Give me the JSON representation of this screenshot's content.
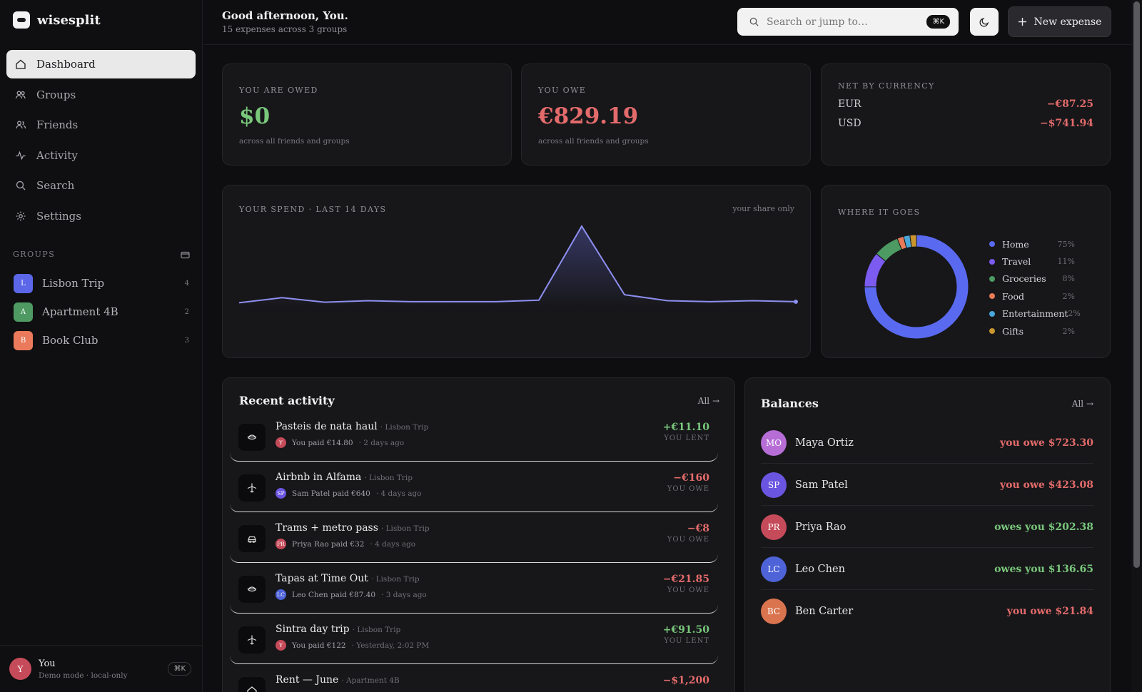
{
  "app": {
    "name": "wisesplit"
  },
  "sidebar": {
    "nav": [
      {
        "label": "Dashboard",
        "icon": "home-icon",
        "active": true
      },
      {
        "label": "Groups",
        "icon": "users-icon"
      },
      {
        "label": "Friends",
        "icon": "friends-icon"
      },
      {
        "label": "Activity",
        "icon": "activity-icon"
      },
      {
        "label": "Search",
        "icon": "search-icon"
      },
      {
        "label": "Settings",
        "icon": "gear-icon"
      }
    ],
    "groups_heading": "GROUPS",
    "groups": [
      {
        "initial": "L",
        "name": "Lisbon Trip",
        "count": "4",
        "color": "#5b67e8"
      },
      {
        "initial": "A",
        "name": "Apartment 4B",
        "count": "2",
        "color": "#4f9a63"
      },
      {
        "initial": "B",
        "name": "Book Club",
        "count": "3",
        "color": "#ea7a5b"
      }
    ],
    "user": {
      "initial": "Y",
      "name": "You",
      "sub": "Demo mode · local-only",
      "shortcut": "⌘K"
    }
  },
  "header": {
    "greeting": "Good afternoon, You.",
    "subtitle": "15 expenses across 3 groups",
    "search_placeholder": "Search or jump to…",
    "search_shortcut": "⌘K",
    "new_expense": "New expense"
  },
  "summary": {
    "owed": {
      "label": "YOU ARE OWED",
      "value": "$0",
      "sub": "across all friends and groups"
    },
    "owe": {
      "label": "YOU OWE",
      "value": "€829.19",
      "sub": "across all friends and groups"
    },
    "net": {
      "label": "NET BY CURRENCY",
      "rows": [
        {
          "currency": "EUR",
          "value": "−€87.25"
        },
        {
          "currency": "USD",
          "value": "−$741.94"
        }
      ]
    }
  },
  "spend": {
    "title": "YOUR SPEND · LAST 14 DAYS",
    "note": "your share only"
  },
  "chart_data": [
    {
      "type": "line",
      "title": "YOUR SPEND · LAST 14 DAYS",
      "x": [
        1,
        2,
        3,
        4,
        5,
        6,
        7,
        8,
        9,
        10,
        11,
        12,
        13,
        14
      ],
      "values": [
        8,
        18,
        9,
        12,
        10,
        10,
        10,
        13,
        160,
        24,
        12,
        10,
        12,
        10
      ],
      "ylim": [
        0,
        170
      ]
    },
    {
      "type": "pie",
      "title": "WHERE IT GOES",
      "categories": [
        "Home",
        "Travel",
        "Groceries",
        "Food",
        "Entertainment",
        "Gifts"
      ],
      "values": [
        75,
        11,
        8,
        2,
        2,
        2
      ],
      "colors": [
        "#5a6af0",
        "#7b5bf0",
        "#4d9a63",
        "#e87b59",
        "#4aa7d9",
        "#c9962f"
      ],
      "labels": [
        "75%",
        "11%",
        "8%",
        "2%",
        "2%",
        "2%"
      ]
    }
  ],
  "activity": {
    "title": "Recent activity",
    "all": "All",
    "items": [
      {
        "icon": "bowl-icon",
        "title": "Pasteis de nata haul",
        "group": "· Lisbon Trip",
        "avatar": "Y",
        "avatar_color": "#c64b5a",
        "paid": "You paid €14.80",
        "when": "· 2 days ago",
        "amount": "+€11.10",
        "kind": "YOU LENT",
        "positive": true
      },
      {
        "icon": "plane-icon",
        "title": "Airbnb in Alfama",
        "group": "· Lisbon Trip",
        "avatar": "SP",
        "avatar_color": "#6a55e0",
        "paid": "Sam Patel paid €640",
        "when": "· 4 days ago",
        "amount": "−€160",
        "kind": "YOU OWE",
        "positive": false
      },
      {
        "icon": "car-icon",
        "title": "Trams + metro pass",
        "group": "· Lisbon Trip",
        "avatar": "PR",
        "avatar_color": "#c64b5a",
        "paid": "Priya Rao paid €32",
        "when": "· 4 days ago",
        "amount": "−€8",
        "kind": "YOU OWE",
        "positive": false
      },
      {
        "icon": "bowl-icon",
        "title": "Tapas at Time Out",
        "group": "· Lisbon Trip",
        "avatar": "LC",
        "avatar_color": "#4f63d8",
        "paid": "Leo Chen paid €87.40",
        "when": "· 3 days ago",
        "amount": "−€21.85",
        "kind": "YOU OWE",
        "positive": false
      },
      {
        "icon": "plane-icon",
        "title": "Sintra day trip",
        "group": "· Lisbon Trip",
        "avatar": "Y",
        "avatar_color": "#c64b5a",
        "paid": "You paid €122",
        "when": "· Yesterday, 2:02 PM",
        "amount": "+€91.50",
        "kind": "YOU LENT",
        "positive": true
      },
      {
        "icon": "home-icon",
        "title": "Rent — June",
        "group": "· Apartment 4B",
        "avatar": "",
        "avatar_color": "#333",
        "paid": "",
        "when": "",
        "amount": "−$1,200",
        "kind": "",
        "positive": false
      }
    ]
  },
  "balances": {
    "title": "Balances",
    "all": "All",
    "items": [
      {
        "initials": "MO",
        "name": "Maya Ortiz",
        "text": "you owe $723.30",
        "positive": false,
        "color": "#b66ed6"
      },
      {
        "initials": "SP",
        "name": "Sam Patel",
        "text": "you owe $423.08",
        "positive": false,
        "color": "#6a55e0"
      },
      {
        "initials": "PR",
        "name": "Priya Rao",
        "text": "owes you $202.38",
        "positive": true,
        "color": "#c64b5a"
      },
      {
        "initials": "LC",
        "name": "Leo Chen",
        "text": "owes you $136.65",
        "positive": true,
        "color": "#4f63d8"
      },
      {
        "initials": "BC",
        "name": "Ben Carter",
        "text": "you owe $21.84",
        "positive": false,
        "color": "#d9744f"
      }
    ]
  }
}
